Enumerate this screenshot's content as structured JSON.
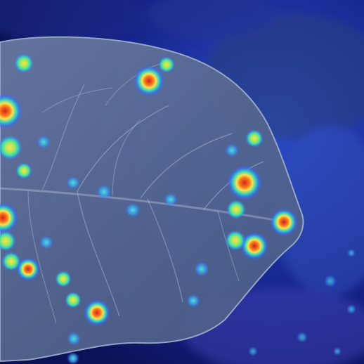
{
  "image": {
    "subject": "leaf",
    "overlay": "attention-heatmap",
    "colors": {
      "background_deep": "#0b1155",
      "background_mid": "#1f3aa8",
      "foliage": "#2a3f7a",
      "leaf_fill": "#5d6f98",
      "leaf_edge": "#9fb0cc",
      "veins": "#c9d4e8",
      "heat_low": "#3a6cff",
      "heat_mid": "#2fd7c0",
      "heat_high": "#ffe14a",
      "heat_peak": "#d9201b"
    }
  }
}
